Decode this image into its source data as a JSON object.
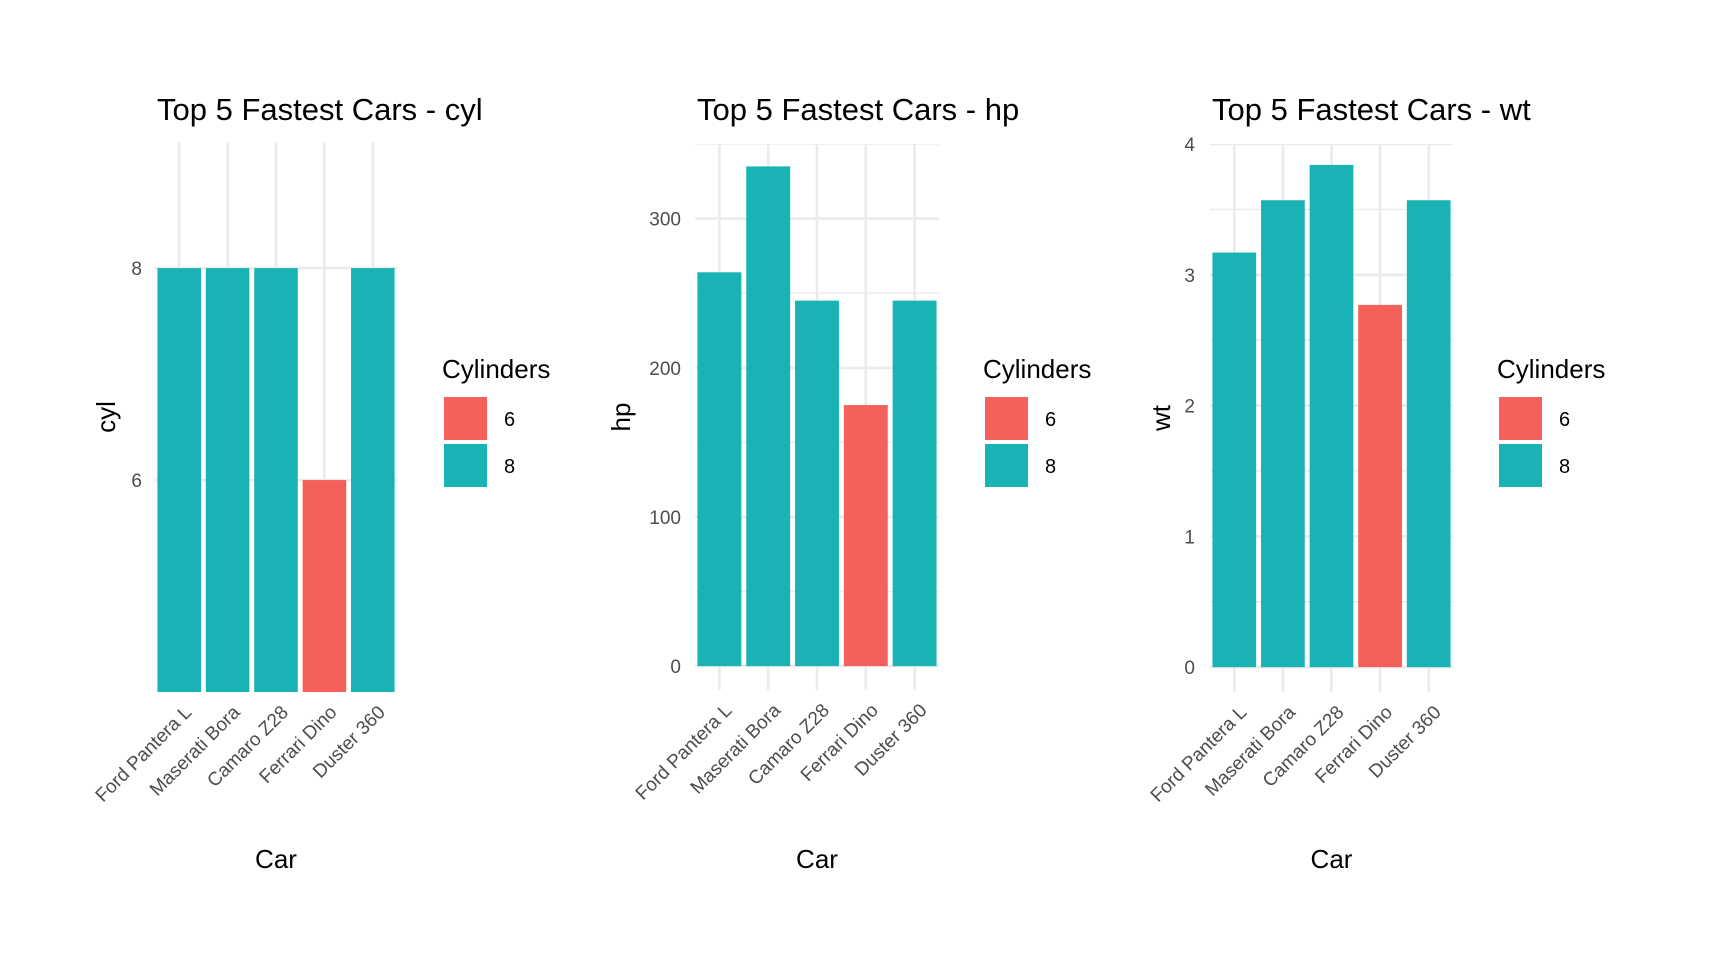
{
  "chart_data": [
    {
      "type": "bar",
      "title": "Top 5 Fastest Cars - cyl",
      "xlabel": "Car",
      "ylabel": "cyl",
      "categories": [
        "Ford Pantera L",
        "Maserati Bora",
        "Camaro Z28",
        "Ferrari Dino",
        "Duster 360"
      ],
      "values": [
        8,
        8,
        8,
        6,
        8
      ],
      "fill_group": [
        "8",
        "8",
        "8",
        "6",
        "8"
      ],
      "ylim": [
        4.0,
        9.19
      ],
      "yticks": [
        6,
        8
      ],
      "ytick_labels": [
        "6",
        "8"
      ],
      "grid": true,
      "legend": {
        "title": "Cylinders",
        "position": "right",
        "entries": [
          {
            "label": "6",
            "color": "#F8766D"
          },
          {
            "label": "8",
            "color": "#00BFC4"
          }
        ]
      }
    },
    {
      "type": "bar",
      "title": "Top 5 Fastest Cars - hp",
      "xlabel": "Car",
      "ylabel": "hp",
      "categories": [
        "Ford Pantera L",
        "Maserati Bora",
        "Camaro Z28",
        "Ferrari Dino",
        "Duster 360"
      ],
      "values": [
        264,
        335,
        245,
        175,
        245
      ],
      "fill_group": [
        "8",
        "8",
        "8",
        "6",
        "8"
      ],
      "ylim": [
        -16,
        350
      ],
      "yticks": [
        0,
        100,
        200,
        300
      ],
      "ytick_labels": [
        "0",
        "100",
        "200",
        "300"
      ],
      "yminor": [
        50,
        150,
        250,
        350
      ],
      "grid": true,
      "legend": {
        "title": "Cylinders",
        "position": "right",
        "entries": [
          {
            "label": "6",
            "color": "#F8766D"
          },
          {
            "label": "8",
            "color": "#00BFC4"
          }
        ]
      }
    },
    {
      "type": "bar",
      "title": "Top 5 Fastest Cars - wt",
      "xlabel": "Car",
      "ylabel": "wt",
      "categories": [
        "Ford Pantera L",
        "Maserati Bora",
        "Camaro Z28",
        "Ferrari Dino",
        "Duster 360"
      ],
      "values": [
        3.17,
        3.57,
        3.84,
        2.77,
        3.57
      ],
      "fill_group": [
        "8",
        "8",
        "8",
        "6",
        "8"
      ],
      "ylim": [
        -0.19,
        4.0
      ],
      "yticks": [
        0,
        1,
        2,
        3,
        4
      ],
      "ytick_labels": [
        "0",
        "1",
        "2",
        "3",
        "4"
      ],
      "yminor": [
        0.5,
        1.5,
        2.5,
        3.5
      ],
      "grid": true,
      "legend": {
        "title": "Cylinders",
        "position": "right",
        "entries": [
          {
            "label": "6",
            "color": "#F8766D"
          },
          {
            "label": "8",
            "color": "#00BFC4"
          }
        ]
      }
    }
  ],
  "colors": {
    "6": "#F5605B",
    "8": "#19B3B6"
  }
}
